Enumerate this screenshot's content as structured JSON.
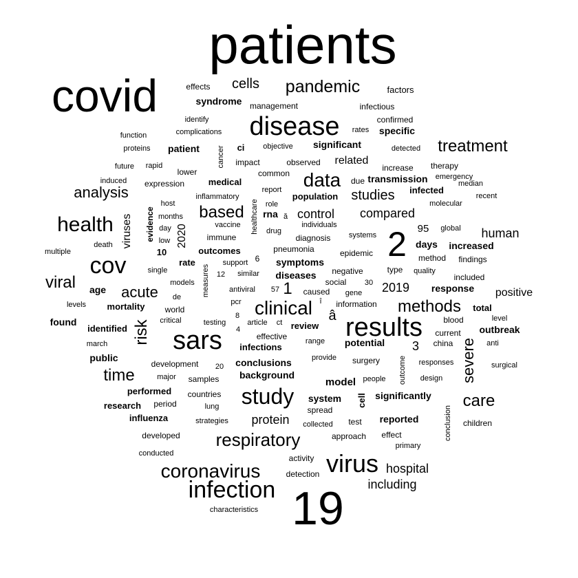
{
  "cloud": {
    "words": [
      {
        "text": "patients",
        "weight": 0.96
      },
      {
        "text": "covid",
        "weight": 0.82
      },
      {
        "text": "19",
        "weight": 0.82
      },
      {
        "text": "2",
        "weight": 0.56
      },
      {
        "text": "disease",
        "weight": 0.48
      },
      {
        "text": "sars",
        "weight": 0.48
      },
      {
        "text": "results",
        "weight": 0.48
      },
      {
        "text": "study",
        "weight": 0.46
      },
      {
        "text": "infection",
        "weight": 0.46
      },
      {
        "text": "cov",
        "weight": 0.44
      },
      {
        "text": "health",
        "weight": 0.42
      },
      {
        "text": "virus",
        "weight": 0.44
      },
      {
        "text": "coronavirus",
        "weight": 0.38
      },
      {
        "text": "respiratory",
        "weight": 0.38
      },
      {
        "text": "clinical",
        "weight": 0.36
      },
      {
        "text": "data",
        "weight": 0.34
      },
      {
        "text": "pandemic",
        "weight": 0.32
      },
      {
        "text": "treatment",
        "weight": 0.3
      },
      {
        "text": "methods",
        "weight": 0.3
      },
      {
        "text": "viral",
        "weight": 0.28
      },
      {
        "text": "acute",
        "weight": 0.28
      },
      {
        "text": "care",
        "weight": 0.28
      },
      {
        "text": "time",
        "weight": 0.28
      },
      {
        "text": "severe",
        "weight": 0.26
      },
      {
        "text": "risk",
        "weight": 0.26
      },
      {
        "text": "based",
        "weight": 0.26
      },
      {
        "text": "analysis",
        "weight": 0.24
      },
      {
        "text": "studies",
        "weight": 0.24
      },
      {
        "text": "protein",
        "weight": 0.22
      },
      {
        "text": "compared",
        "weight": 0.22
      },
      {
        "text": "â",
        "weight": 0.22
      },
      {
        "text": "1",
        "weight": 0.24
      },
      {
        "text": "cells",
        "weight": 0.2
      },
      {
        "text": "control",
        "weight": 0.2
      },
      {
        "text": "human",
        "weight": 0.2
      },
      {
        "text": "2019",
        "weight": 0.2
      },
      {
        "text": "including",
        "weight": 0.2
      },
      {
        "text": "hospital",
        "weight": 0.2
      },
      {
        "text": "positive",
        "weight": 0.18
      },
      {
        "text": "related",
        "weight": 0.18
      },
      {
        "text": "viruses",
        "weight": 0.18
      },
      {
        "text": "2020",
        "weight": 0.18
      },
      {
        "text": "3",
        "weight": 0.18
      },
      {
        "text": "95",
        "weight": 0.16
      },
      {
        "text": "model",
        "weight": 0.16
      },
      {
        "text": "system",
        "weight": 0.16
      },
      {
        "text": "syndrome",
        "weight": 0.16
      },
      {
        "text": "significant",
        "weight": 0.16
      },
      {
        "text": "patient",
        "weight": 0.16
      },
      {
        "text": "population",
        "weight": 0.16
      },
      {
        "text": "transmission",
        "weight": 0.16
      },
      {
        "text": "infected",
        "weight": 0.16
      },
      {
        "text": "rna",
        "weight": 0.16
      },
      {
        "text": "days",
        "weight": 0.16
      },
      {
        "text": "increased",
        "weight": 0.16
      },
      {
        "text": "symptoms",
        "weight": 0.16
      },
      {
        "text": "outcomes",
        "weight": 0.16
      },
      {
        "text": "rate",
        "weight": 0.16
      },
      {
        "text": "age",
        "weight": 0.16
      },
      {
        "text": "mortality",
        "weight": 0.16
      },
      {
        "text": "response",
        "weight": 0.16
      },
      {
        "text": "review",
        "weight": 0.16
      },
      {
        "text": "potential",
        "weight": 0.16
      },
      {
        "text": "infections",
        "weight": 0.16
      },
      {
        "text": "conclusions",
        "weight": 0.16
      },
      {
        "text": "background",
        "weight": 0.16
      },
      {
        "text": "significantly",
        "weight": 0.16
      },
      {
        "text": "reported",
        "weight": 0.16
      },
      {
        "text": "identified",
        "weight": 0.15
      },
      {
        "text": "found",
        "weight": 0.15
      },
      {
        "text": "public",
        "weight": 0.15
      },
      {
        "text": "outbreak",
        "weight": 0.15
      },
      {
        "text": "performed",
        "weight": 0.15
      },
      {
        "text": "research",
        "weight": 0.15
      },
      {
        "text": "influenza",
        "weight": 0.15
      },
      {
        "text": "ci",
        "weight": 0.15
      },
      {
        "text": "factors",
        "weight": 0.14
      },
      {
        "text": "specific",
        "weight": 0.14
      },
      {
        "text": "medical",
        "weight": 0.14
      },
      {
        "text": "diseases",
        "weight": 0.14
      },
      {
        "text": "evidence",
        "weight": 0.14
      },
      {
        "text": "total",
        "weight": 0.14
      },
      {
        "text": "10",
        "weight": 0.14
      },
      {
        "text": "cell",
        "weight": 0.14
      },
      {
        "text": "effects",
        "weight": 0.12
      },
      {
        "text": "management",
        "weight": 0.12
      },
      {
        "text": "infectious",
        "weight": 0.12
      },
      {
        "text": "confirmed",
        "weight": 0.12
      },
      {
        "text": "identify",
        "weight": 0.11
      },
      {
        "text": "rates",
        "weight": 0.11
      },
      {
        "text": "function",
        "weight": 0.11
      },
      {
        "text": "complications",
        "weight": 0.11
      },
      {
        "text": "proteins",
        "weight": 0.11
      },
      {
        "text": "objective",
        "weight": 0.11
      },
      {
        "text": "detected",
        "weight": 0.11
      },
      {
        "text": "cancer",
        "weight": 0.11
      },
      {
        "text": "impact",
        "weight": 0.12
      },
      {
        "text": "observed",
        "weight": 0.12
      },
      {
        "text": "increase",
        "weight": 0.12
      },
      {
        "text": "therapy",
        "weight": 0.12
      },
      {
        "text": "future",
        "weight": 0.11
      },
      {
        "text": "rapid",
        "weight": 0.11
      },
      {
        "text": "lower",
        "weight": 0.12
      },
      {
        "text": "common",
        "weight": 0.12
      },
      {
        "text": "induced",
        "weight": 0.11
      },
      {
        "text": "expression",
        "weight": 0.12
      },
      {
        "text": "due",
        "weight": 0.12
      },
      {
        "text": "emergency",
        "weight": 0.11
      },
      {
        "text": "median",
        "weight": 0.11
      },
      {
        "text": "report",
        "weight": 0.11
      },
      {
        "text": "inflammatory",
        "weight": 0.11
      },
      {
        "text": "recent",
        "weight": 0.11
      },
      {
        "text": "host",
        "weight": 0.11
      },
      {
        "text": "role",
        "weight": 0.11
      },
      {
        "text": "molecular",
        "weight": 0.11
      },
      {
        "text": "healthcare",
        "weight": 0.11
      },
      {
        "text": "months",
        "weight": 0.11
      },
      {
        "text": "ă",
        "weight": 0.11
      },
      {
        "text": "vaccine",
        "weight": 0.11
      },
      {
        "text": "individuals",
        "weight": 0.11
      },
      {
        "text": "global",
        "weight": 0.11
      },
      {
        "text": "day",
        "weight": 0.11
      },
      {
        "text": "immune",
        "weight": 0.12
      },
      {
        "text": "drug",
        "weight": 0.11
      },
      {
        "text": "diagnosis",
        "weight": 0.12
      },
      {
        "text": "systems",
        "weight": 0.11
      },
      {
        "text": "low",
        "weight": 0.11
      },
      {
        "text": "death",
        "weight": 0.11
      },
      {
        "text": "pneumonia",
        "weight": 0.12
      },
      {
        "text": "multiple",
        "weight": 0.11
      },
      {
        "text": "epidemic",
        "weight": 0.12
      },
      {
        "text": "method",
        "weight": 0.12
      },
      {
        "text": "findings",
        "weight": 0.12
      },
      {
        "text": "support",
        "weight": 0.11
      },
      {
        "text": "6",
        "weight": 0.12
      },
      {
        "text": "single",
        "weight": 0.11
      },
      {
        "text": "negative",
        "weight": 0.12
      },
      {
        "text": "type",
        "weight": 0.12
      },
      {
        "text": "quality",
        "weight": 0.11
      },
      {
        "text": "similar",
        "weight": 0.11
      },
      {
        "text": "12",
        "weight": 0.11
      },
      {
        "text": "measures",
        "weight": 0.11
      },
      {
        "text": "social",
        "weight": 0.12
      },
      {
        "text": "30",
        "weight": 0.11
      },
      {
        "text": "included",
        "weight": 0.12
      },
      {
        "text": "models",
        "weight": 0.11
      },
      {
        "text": "antiviral",
        "weight": 0.11
      },
      {
        "text": "57",
        "weight": 0.11
      },
      {
        "text": "caused",
        "weight": 0.12
      },
      {
        "text": "gene",
        "weight": 0.11
      },
      {
        "text": "levels",
        "weight": 0.11
      },
      {
        "text": "de",
        "weight": 0.11
      },
      {
        "text": "pcr",
        "weight": 0.11
      },
      {
        "text": "information",
        "weight": 0.12
      },
      {
        "text": "world",
        "weight": 0.12
      },
      {
        "text": "8",
        "weight": 0.11
      },
      {
        "text": "î",
        "weight": 0.11
      },
      {
        "text": "level",
        "weight": 0.11
      },
      {
        "text": "critical",
        "weight": 0.11
      },
      {
        "text": "testing",
        "weight": 0.11
      },
      {
        "text": "article",
        "weight": 0.11
      },
      {
        "text": "ct",
        "weight": 0.11
      },
      {
        "text": "blood",
        "weight": 0.12
      },
      {
        "text": "4",
        "weight": 0.11
      },
      {
        "text": "current",
        "weight": 0.12
      },
      {
        "text": "march",
        "weight": 0.11
      },
      {
        "text": "effective",
        "weight": 0.12
      },
      {
        "text": "anti",
        "weight": 0.11
      },
      {
        "text": "range",
        "weight": 0.11
      },
      {
        "text": "china",
        "weight": 0.12
      },
      {
        "text": "development",
        "weight": 0.12
      },
      {
        "text": "20",
        "weight": 0.11
      },
      {
        "text": "provide",
        "weight": 0.11
      },
      {
        "text": "outcome",
        "weight": 0.11
      },
      {
        "text": "responses",
        "weight": 0.11
      },
      {
        "text": "surgical",
        "weight": 0.11
      },
      {
        "text": "major",
        "weight": 0.11
      },
      {
        "text": "samples",
        "weight": 0.12
      },
      {
        "text": "surgery",
        "weight": 0.12
      },
      {
        "text": "people",
        "weight": 0.11
      },
      {
        "text": "design",
        "weight": 0.11
      },
      {
        "text": "countries",
        "weight": 0.12
      },
      {
        "text": "period",
        "weight": 0.12
      },
      {
        "text": "lung",
        "weight": 0.11
      },
      {
        "text": "spread",
        "weight": 0.12
      },
      {
        "text": "conclusion",
        "weight": 0.11
      },
      {
        "text": "strategies",
        "weight": 0.11
      },
      {
        "text": "collected",
        "weight": 0.11
      },
      {
        "text": "test",
        "weight": 0.12
      },
      {
        "text": "children",
        "weight": 0.12
      },
      {
        "text": "developed",
        "weight": 0.12
      },
      {
        "text": "approach",
        "weight": 0.12
      },
      {
        "text": "effect",
        "weight": 0.12
      },
      {
        "text": "primary",
        "weight": 0.11
      },
      {
        "text": "conducted",
        "weight": 0.11
      },
      {
        "text": "activity",
        "weight": 0.12
      },
      {
        "text": "detection",
        "weight": 0.12
      },
      {
        "text": "characteristics",
        "weight": 0.11
      }
    ]
  }
}
